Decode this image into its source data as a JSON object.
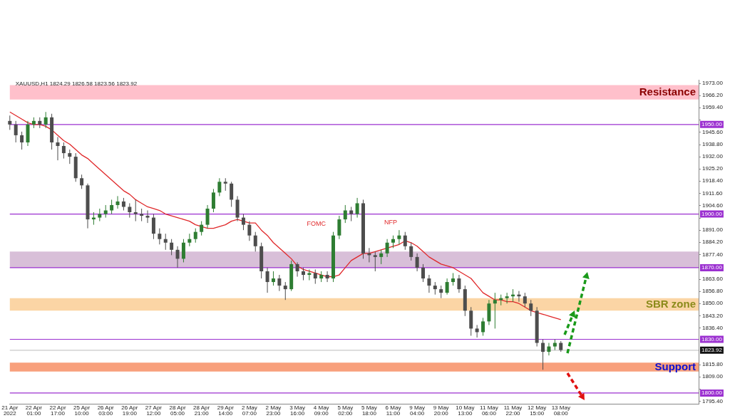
{
  "chart_data": {
    "type": "candlestick",
    "title": "XAUUSD,H1 1824.29 1826.58 1823.56 1823.92",
    "categories": [
      "21 Apr 2022",
      null,
      null,
      null,
      "22 Apr 01:00",
      null,
      null,
      null,
      "22 Apr 17:00",
      null,
      null,
      null,
      "25 Apr 10:00",
      null,
      null,
      null,
      "26 Apr 03:00",
      null,
      null,
      null,
      "26 Apr 19:00",
      null,
      null,
      null,
      "27 Apr 12:00",
      null,
      null,
      null,
      "28 Apr 05:00",
      null,
      null,
      null,
      "28 Apr 21:00",
      null,
      null,
      null,
      "29 Apr 14:00",
      null,
      null,
      null,
      "2 May 07:00",
      null,
      null,
      null,
      "2 May 23:00",
      null,
      null,
      null,
      "3 May 16:00",
      null,
      null,
      null,
      "4 May 09:00",
      null,
      null,
      null,
      "5 May 02:00",
      null,
      null,
      null,
      "5 May 18:00",
      null,
      null,
      null,
      "6 May 11:00",
      null,
      null,
      null,
      "9 May 04:00",
      null,
      null,
      null,
      "9 May 20:00",
      null,
      null,
      null,
      "10 May 13:00",
      null,
      null,
      null,
      "11 May 06:00",
      null,
      null,
      null,
      "11 May 22:00",
      null,
      null,
      null,
      "12 May 15:00",
      null,
      null,
      null,
      "13 May 08:00",
      null,
      null,
      null,
      null,
      null,
      null,
      null,
      null,
      null,
      null,
      null,
      null,
      null,
      null,
      null,
      null,
      null,
      null,
      null,
      null,
      null,
      null,
      null
    ],
    "series": [
      {
        "type": "candlestick",
        "ohlc": [
          [
            1952,
            1955,
            1947,
            1950
          ],
          [
            1950,
            1952,
            1940,
            1944
          ],
          [
            1944,
            1946,
            1936,
            1940
          ],
          [
            1940,
            1952,
            1938,
            1950
          ],
          [
            1950,
            1954,
            1948,
            1952
          ],
          [
            1952,
            1954,
            1948,
            1950
          ],
          [
            1950,
            1957,
            1948,
            1954
          ],
          [
            1954,
            1956,
            1936,
            1940
          ],
          [
            1940,
            1943,
            1930,
            1938
          ],
          [
            1938,
            1940,
            1931,
            1934
          ],
          [
            1934,
            1936,
            1928,
            1932
          ],
          [
            1932,
            1934,
            1918,
            1920
          ],
          [
            1920,
            1922,
            1914,
            1916
          ],
          [
            1916,
            1917,
            1892,
            1897
          ],
          [
            1897,
            1901,
            1894,
            1898
          ],
          [
            1898,
            1903,
            1896,
            1900
          ],
          [
            1900,
            1905,
            1898,
            1902
          ],
          [
            1902,
            1908,
            1900,
            1905
          ],
          [
            1905,
            1910,
            1903,
            1907
          ],
          [
            1907,
            1909,
            1902,
            1904
          ],
          [
            1904,
            1906,
            1898,
            1901
          ],
          [
            1901,
            1908,
            1896,
            1900
          ],
          [
            1900,
            1903,
            1896,
            1899
          ],
          [
            1899,
            1902,
            1895,
            1898
          ],
          [
            1898,
            1900,
            1886,
            1889
          ],
          [
            1889,
            1892,
            1883,
            1886
          ],
          [
            1886,
            1889,
            1880,
            1884
          ],
          [
            1884,
            1886,
            1877,
            1880
          ],
          [
            1880,
            1882,
            1870,
            1875
          ],
          [
            1875,
            1886,
            1873,
            1884
          ],
          [
            1884,
            1889,
            1882,
            1886
          ],
          [
            1886,
            1892,
            1884,
            1890
          ],
          [
            1890,
            1896,
            1888,
            1894
          ],
          [
            1894,
            1905,
            1892,
            1903
          ],
          [
            1903,
            1914,
            1901,
            1912
          ],
          [
            1912,
            1920,
            1910,
            1918
          ],
          [
            1918,
            1920,
            1913,
            1917
          ],
          [
            1917,
            1918,
            1904,
            1908
          ],
          [
            1908,
            1910,
            1896,
            1898
          ],
          [
            1898,
            1900,
            1891,
            1894
          ],
          [
            1894,
            1896,
            1885,
            1888
          ],
          [
            1888,
            1890,
            1879,
            1882
          ],
          [
            1882,
            1884,
            1864,
            1868
          ],
          [
            1868,
            1870,
            1856,
            1862
          ],
          [
            1862,
            1868,
            1860,
            1864
          ],
          [
            1864,
            1866,
            1857,
            1860
          ],
          [
            1860,
            1862,
            1852,
            1858
          ],
          [
            1858,
            1874,
            1857,
            1872
          ],
          [
            1872,
            1873,
            1865,
            1868
          ],
          [
            1868,
            1870,
            1863,
            1866
          ],
          [
            1866,
            1869,
            1863,
            1867
          ],
          [
            1867,
            1869,
            1861,
            1864
          ],
          [
            1864,
            1868,
            1862,
            1866
          ],
          [
            1866,
            1868,
            1862,
            1864
          ],
          [
            1864,
            1890,
            1862,
            1888
          ],
          [
            1888,
            1899,
            1886,
            1897
          ],
          [
            1897,
            1905,
            1895,
            1902
          ],
          [
            1902,
            1904,
            1896,
            1900
          ],
          [
            1900,
            1909,
            1898,
            1906
          ],
          [
            1906,
            1908,
            1875,
            1878
          ],
          [
            1878,
            1881,
            1873,
            1877
          ],
          [
            1877,
            1879,
            1868,
            1876
          ],
          [
            1876,
            1880,
            1872,
            1878
          ],
          [
            1878,
            1886,
            1876,
            1884
          ],
          [
            1884,
            1888,
            1881,
            1886
          ],
          [
            1886,
            1891,
            1883,
            1888
          ],
          [
            1888,
            1890,
            1880,
            1882
          ],
          [
            1882,
            1884,
            1874,
            1876
          ],
          [
            1876,
            1878,
            1868,
            1870
          ],
          [
            1870,
            1872,
            1862,
            1864
          ],
          [
            1864,
            1866,
            1856,
            1860
          ],
          [
            1860,
            1862,
            1855,
            1858
          ],
          [
            1858,
            1860,
            1853,
            1856
          ],
          [
            1856,
            1864,
            1855,
            1862
          ],
          [
            1862,
            1867,
            1860,
            1864
          ],
          [
            1864,
            1866,
            1856,
            1858
          ],
          [
            1858,
            1860,
            1843,
            1846
          ],
          [
            1846,
            1848,
            1832,
            1836
          ],
          [
            1836,
            1838,
            1831,
            1834
          ],
          [
            1834,
            1842,
            1832,
            1840
          ],
          [
            1840,
            1852,
            1838,
            1850
          ],
          [
            1850,
            1856,
            1836,
            1852
          ],
          [
            1852,
            1855,
            1849,
            1853
          ],
          [
            1853,
            1856,
            1850,
            1854
          ],
          [
            1854,
            1858,
            1851,
            1855
          ],
          [
            1855,
            1857,
            1851,
            1854
          ],
          [
            1854,
            1856,
            1848,
            1850
          ],
          [
            1850,
            1852,
            1843,
            1846
          ],
          [
            1846,
            1848,
            1826,
            1828
          ],
          [
            1828,
            1830,
            1813,
            1823
          ],
          [
            1823,
            1828,
            1821,
            1826
          ],
          [
            1826,
            1830,
            1824,
            1828
          ],
          [
            1828,
            1829,
            1823,
            1824
          ],
          null,
          null,
          null,
          null,
          null,
          null,
          null,
          null,
          null,
          null,
          null,
          null,
          null,
          null,
          null,
          null,
          null,
          null,
          null,
          null,
          null,
          null,
          null
        ],
        "colors": [
          "#4d4d4d",
          "#4d4d4d",
          "#4d4d4d",
          "#2e7d32",
          "#2e7d32",
          "#4d4d4d",
          "#2e7d32",
          "#4d4d4d",
          "#4d4d4d",
          "#4d4d4d",
          "#4d4d4d",
          "#4d4d4d",
          "#4d4d4d",
          "#4d4d4d",
          "#2e7d32",
          "#2e7d32",
          "#2e7d32",
          "#2e7d32",
          "#2e7d32",
          "#4d4d4d",
          "#4d4d4d",
          "#4d4d4d",
          "#4d4d4d",
          "#4d4d4d",
          "#4d4d4d",
          "#4d4d4d",
          "#4d4d4d",
          "#4d4d4d",
          "#4d4d4d",
          "#2e7d32",
          "#2e7d32",
          "#2e7d32",
          "#2e7d32",
          "#2e7d32",
          "#2e7d32",
          "#2e7d32",
          "#4d4d4d",
          "#4d4d4d",
          "#4d4d4d",
          "#4d4d4d",
          "#4d4d4d",
          "#4d4d4d",
          "#4d4d4d",
          "#4d4d4d",
          "#2e7d32",
          "#4d4d4d",
          "#4d4d4d",
          "#2e7d32",
          "#4d4d4d",
          "#4d4d4d",
          "#2e7d32",
          "#4d4d4d",
          "#2e7d32",
          "#4d4d4d",
          "#2e7d32",
          "#2e7d32",
          "#2e7d32",
          "#4d4d4d",
          "#2e7d32",
          "#4d4d4d",
          "#4d4d4d",
          "#4d4d4d",
          "#2e7d32",
          "#2e7d32",
          "#2e7d32",
          "#2e7d32",
          "#4d4d4d",
          "#4d4d4d",
          "#4d4d4d",
          "#4d4d4d",
          "#4d4d4d",
          "#4d4d4d",
          "#4d4d4d",
          "#2e7d32",
          "#2e7d32",
          "#4d4d4d",
          "#4d4d4d",
          "#4d4d4d",
          "#4d4d4d",
          "#2e7d32",
          "#2e7d32",
          "#2e7d32",
          "#2e7d32",
          "#2e7d32",
          "#2e7d32",
          "#4d4d4d",
          "#4d4d4d",
          "#4d4d4d",
          "#4d4d4d",
          "#4d4d4d",
          "#2e7d32",
          "#2e7d32",
          "#4d4d4d",
          null,
          null,
          null,
          null,
          null,
          null,
          null,
          null,
          null,
          null,
          null,
          null,
          null,
          null,
          null,
          null,
          null,
          null,
          null,
          null,
          null,
          null,
          null
        ]
      },
      {
        "type": "line",
        "color": "#e0282a",
        "values": [
          1957,
          1955,
          1953,
          1951,
          1950,
          1950,
          1949,
          1947,
          1944,
          1941,
          1939,
          1936,
          1933,
          1931,
          1928,
          1925,
          1922,
          1919,
          1916,
          1913,
          1911,
          1908,
          1906,
          1904,
          1903,
          1902,
          1900,
          1899,
          1898,
          1897,
          1896,
          1894,
          1893,
          1892,
          1892,
          1893,
          1894,
          1896,
          1897,
          1896,
          1895,
          1895,
          1891,
          1888,
          1884,
          1881,
          1878,
          1875,
          1871,
          1869,
          1868,
          1867,
          1866,
          1865,
          1865,
          1866,
          1870,
          1874,
          1876,
          1878,
          1878,
          1879,
          1880,
          1881,
          1882,
          1883,
          1885,
          1884,
          1882,
          1879,
          1876,
          1874,
          1872,
          1871,
          1870,
          1868,
          1866,
          1864,
          1860,
          1856,
          1854,
          1852,
          1852,
          1851,
          1851,
          1850,
          1848,
          1846,
          1845,
          1844,
          1843,
          1842,
          1841,
          null,
          null,
          null,
          null,
          null,
          null,
          null,
          null,
          null,
          null,
          null,
          null,
          null,
          null,
          null,
          null,
          null,
          null,
          null,
          null,
          null,
          null,
          null
        ]
      }
    ],
    "ylim": [
      1794,
      1975
    ],
    "yticks": [
      {
        "value": 1795.4,
        "label": "1795.40"
      },
      {
        "value": 1802.2,
        "label": null
      },
      {
        "value": 1809,
        "label": "1809.00"
      },
      {
        "value": 1815.8,
        "label": "1815.80"
      },
      {
        "value": 1836.4,
        "label": "1836.40"
      },
      {
        "value": 1843.2,
        "label": "1843.20"
      },
      {
        "value": 1850,
        "label": "1850.00"
      },
      {
        "value": 1856.8,
        "label": "1856.80"
      },
      {
        "value": 1863.6,
        "label": "1863.60"
      },
      {
        "value": 1877.4,
        "label": "1877.40"
      },
      {
        "value": 1884.2,
        "label": "1884.20"
      },
      {
        "value": 1891,
        "label": "1891.00"
      },
      {
        "value": 1897.8,
        "label": null
      },
      {
        "value": 1904.6,
        "label": "1904.60"
      },
      {
        "value": 1911.6,
        "label": "1911.60"
      },
      {
        "value": 1918.4,
        "label": "1918.40"
      },
      {
        "value": 1925.2,
        "label": "1925.20"
      },
      {
        "value": 1932,
        "label": "1932.00"
      },
      {
        "value": 1938.8,
        "label": "1938.80"
      },
      {
        "value": 1945.6,
        "label": "1945.60"
      },
      {
        "value": 1952.6,
        "label": null
      },
      {
        "value": 1959.4,
        "label": "1959.40"
      },
      {
        "value": 1966.2,
        "label": "1966.20"
      },
      {
        "value": 1973,
        "label": "1973.00"
      }
    ],
    "bands": [
      {
        "axis": "y",
        "from": 1964,
        "to": 1972,
        "label": "Resistance",
        "color": "#ffc0cb"
      },
      {
        "axis": "y",
        "from": 1870,
        "to": 1879,
        "color": "#d8bfd8"
      },
      {
        "axis": "y",
        "from": 1846,
        "to": 1853,
        "label": "SBR zone",
        "color": "#fbd5a5"
      },
      {
        "axis": "y",
        "from": 1812,
        "to": 1817,
        "label": "Support",
        "color": "#f8a07c"
      }
    ],
    "ref_lines": [
      {
        "axis": "y",
        "value": 1950,
        "label": "1950.00",
        "color": "#9b30d0"
      },
      {
        "axis": "y",
        "value": 1900,
        "label": "1900.00",
        "color": "#9b30d0"
      },
      {
        "axis": "y",
        "value": 1870,
        "label": "1870.00",
        "color": "#9b30d0"
      },
      {
        "axis": "y",
        "value": 1830,
        "label": "1830.00",
        "color": "#9b30d0"
      },
      {
        "axis": "y",
        "value": 1800,
        "label": "1800.00",
        "color": "#9b30d0"
      },
      {
        "axis": "y",
        "value": 1823.92,
        "label": "1823.92",
        "color": "#c8c8c8"
      }
    ],
    "annotations": [
      "FOMC",
      "NFP"
    ],
    "grid": false,
    "legend": false
  }
}
